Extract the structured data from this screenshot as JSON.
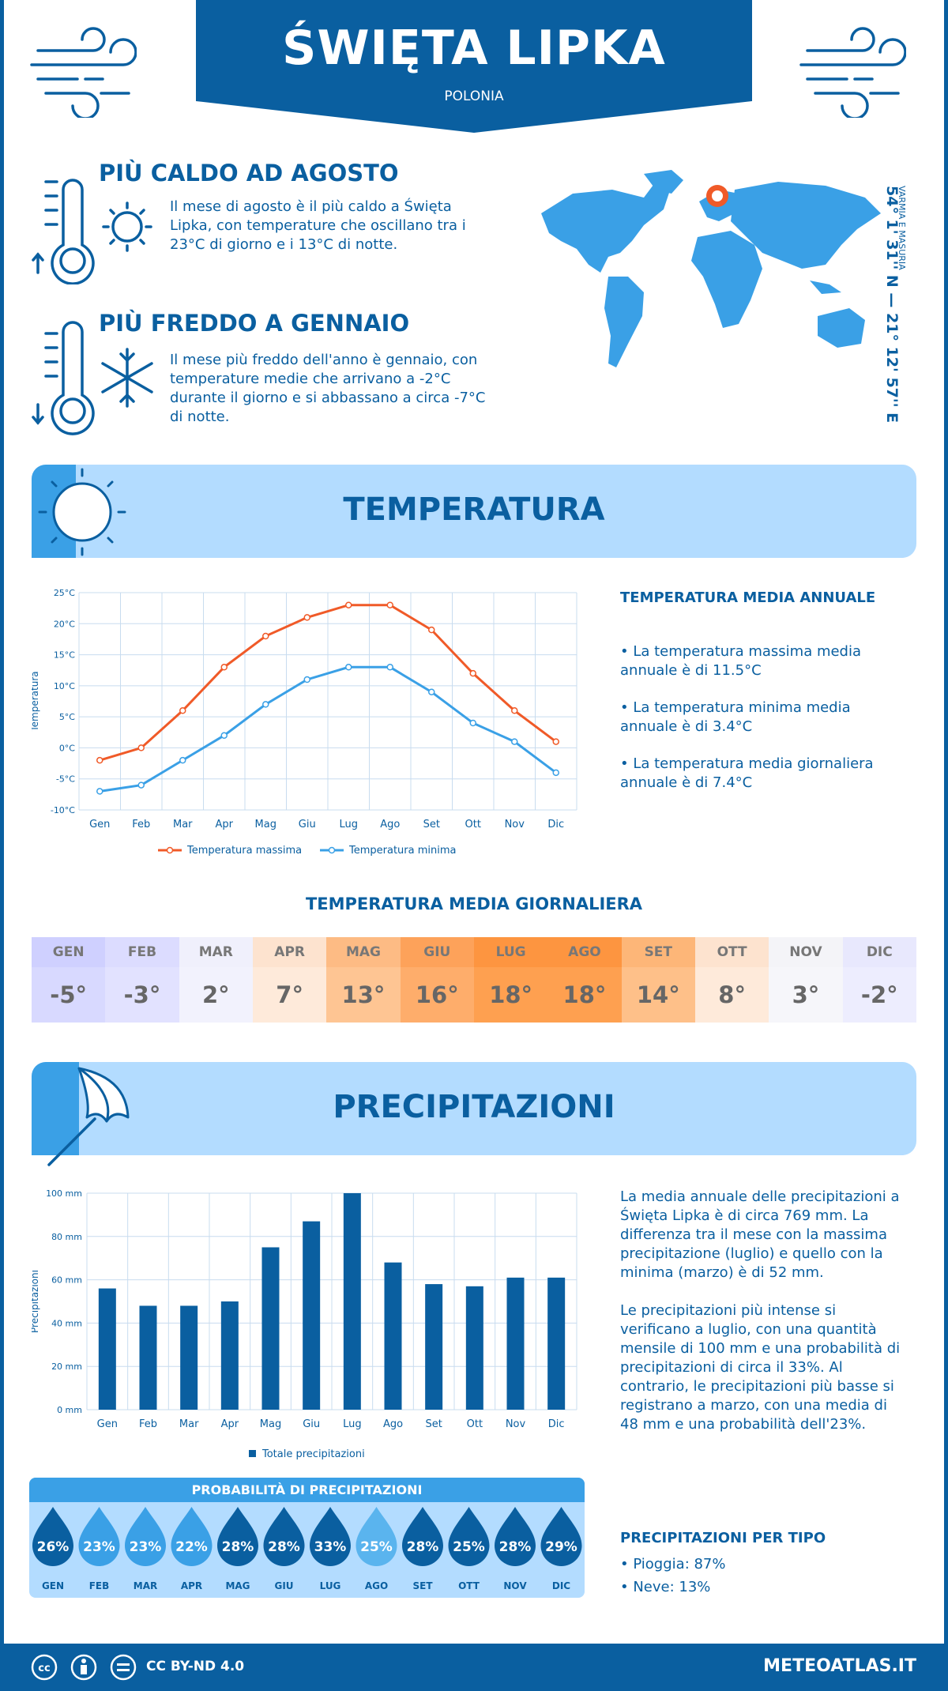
{
  "header": {
    "city": "ŚWIĘTA LIPKA",
    "country": "POLONIA"
  },
  "facts": {
    "warmest_title": "PIÙ CALDO AD AGOSTO",
    "warmest_text": "Il mese di agosto è il più caldo a Święta Lipka, con temperature che oscillano tra i 23°C di giorno e i 13°C di notte.",
    "coldest_title": "PIÙ FREDDO A GENNAIO",
    "coldest_text": "Il mese più freddo dell'anno è gennaio, con temperature medie che arrivano a -2°C durante il giorno e si abbassano a circa -7°C di notte."
  },
  "location": {
    "coords": "54° 1' 31'' N — 21° 12' 57'' E",
    "region": "VARMIA E MASURIA"
  },
  "temperature_section": {
    "title": "TEMPERATURA",
    "side_title": "TEMPERATURA MEDIA ANNUALE",
    "bullets": [
      "• La temperatura massima media annuale è di 11.5°C",
      "• La temperatura minima media annuale è di 3.4°C",
      "• La temperatura media giornaliera annuale è di 7.4°C"
    ]
  },
  "daily": {
    "title": "TEMPERATURA MEDIA GIORNALIERA",
    "months": [
      "GEN",
      "FEB",
      "MAR",
      "APR",
      "MAG",
      "GIU",
      "LUG",
      "AGO",
      "SET",
      "OTT",
      "NOV",
      "DIC"
    ],
    "values": [
      "-5°",
      "-3°",
      "2°",
      "7°",
      "13°",
      "16°",
      "18°",
      "18°",
      "14°",
      "8°",
      "3°",
      "-2°"
    ],
    "header_colors": [
      "#cfd0ff",
      "#dcdcff",
      "#f0f0fc",
      "#fde3cf",
      "#fdbb84",
      "#fda25a",
      "#fd9540",
      "#fd9540",
      "#fdb678",
      "#fde3cf",
      "#f4f4f8",
      "#e8e8fd"
    ],
    "value_colors": [
      "#d8d9ff",
      "#e2e2ff",
      "#f2f2fd",
      "#feeada",
      "#fec593",
      "#fead6b",
      "#fea050",
      "#fea050",
      "#fec089",
      "#feeada",
      "#f6f6fa",
      "#ededfe"
    ]
  },
  "precip_section": {
    "title": "PRECIPITAZIONI",
    "text1": "La media annuale delle precipitazioni a Święta Lipka è di circa 769 mm. La differenza tra il mese con la massima precipitazione (luglio) e quello con la minima (marzo) è di 52 mm.",
    "text2": "Le precipitazioni più intense si verificano a luglio, con una quantità mensile di 100 mm e una probabilità di precipitazioni di circa il 33%. Al contrario, le precipitazioni più basse si registrano a marzo, con una media di 48 mm e una probabilità dell'23%.",
    "type_title": "PRECIPITAZIONI PER TIPO",
    "types": [
      "• Pioggia: 87%",
      "• Neve: 13%"
    ]
  },
  "probability": {
    "title": "PROBABILITÀ DI PRECIPITAZIONI",
    "months": [
      "GEN",
      "FEB",
      "MAR",
      "APR",
      "MAG",
      "GIU",
      "LUG",
      "AGO",
      "SET",
      "OTT",
      "NOV",
      "DIC"
    ],
    "values": [
      "26%",
      "23%",
      "23%",
      "22%",
      "28%",
      "28%",
      "33%",
      "25%",
      "28%",
      "25%",
      "28%",
      "29%"
    ],
    "colors": [
      "#0a5fa0",
      "#3aa0e6",
      "#3aa0e6",
      "#3aa0e6",
      "#0a5fa0",
      "#0a5fa0",
      "#0a5fa0",
      "#5ab4ee",
      "#0a5fa0",
      "#0a5fa0",
      "#0a5fa0",
      "#0a5fa0"
    ]
  },
  "footer": {
    "license": "CC BY-ND 4.0",
    "site": "METEOATLAS.IT"
  },
  "colors": {
    "primary": "#0a5fa0",
    "light_blue": "#b3dcff",
    "max_line": "#f05a28",
    "min_line": "#3aa0e6"
  },
  "chart_data": [
    {
      "type": "line",
      "categories": [
        "Gen",
        "Feb",
        "Mar",
        "Apr",
        "Mag",
        "Giu",
        "Lug",
        "Ago",
        "Set",
        "Ott",
        "Nov",
        "Dic"
      ],
      "series": [
        {
          "name": "Temperatura massima",
          "values": [
            -2,
            0,
            6,
            13,
            18,
            21,
            23,
            23,
            19,
            12,
            6,
            1
          ]
        },
        {
          "name": "Temperatura minima",
          "values": [
            -7,
            -6,
            -2,
            2,
            7,
            11,
            13,
            13,
            9,
            4,
            1,
            -4
          ]
        }
      ],
      "ylabel": "Temperatura",
      "yticks": [
        "25°C",
        "20°C",
        "15°C",
        "10°C",
        "5°C",
        "0°C",
        "-5°C",
        "-10°C"
      ],
      "ylim": [
        -10,
        25
      ],
      "grid": true,
      "legend": "bottom"
    },
    {
      "type": "bar",
      "categories": [
        "Gen",
        "Feb",
        "Mar",
        "Apr",
        "Mag",
        "Giu",
        "Lug",
        "Ago",
        "Set",
        "Ott",
        "Nov",
        "Dic"
      ],
      "series": [
        {
          "name": "Totale precipitazioni",
          "values": [
            56,
            48,
            48,
            50,
            75,
            87,
            100,
            68,
            58,
            57,
            61,
            61
          ]
        }
      ],
      "ylabel": "Precipitazioni",
      "yticks": [
        "100 mm",
        "80 mm",
        "60 mm",
        "40 mm",
        "20 mm",
        "0 mm"
      ],
      "ylim": [
        0,
        100
      ],
      "grid": true,
      "legend": "bottom"
    }
  ]
}
